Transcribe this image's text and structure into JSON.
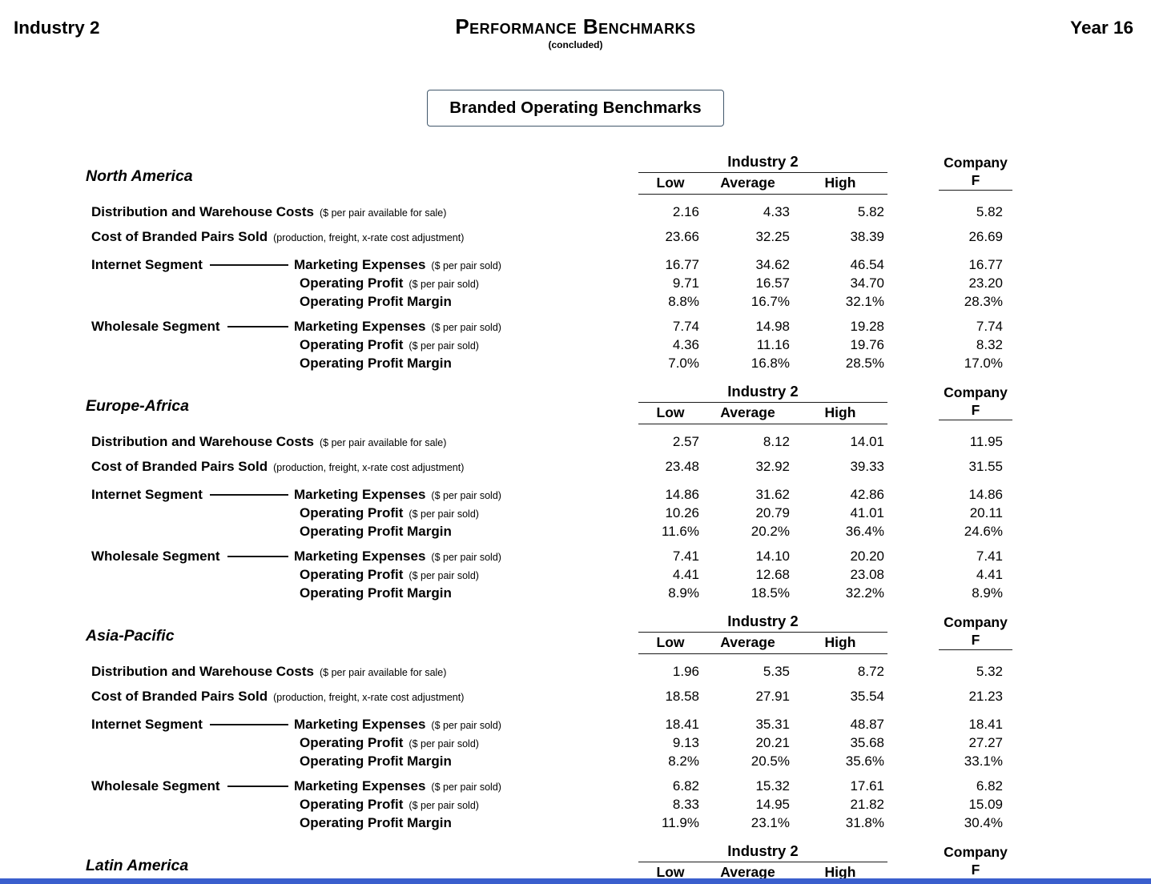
{
  "page": {
    "header_left": "Industry 2",
    "title": "Performance Benchmarks",
    "title_note": "(concluded)",
    "header_right": "Year 16",
    "box_title": "Branded Operating Benchmarks",
    "footer_strip_color": "#3a5fcd"
  },
  "table": {
    "group_header": "Industry 2",
    "columns": [
      "Low",
      "Average",
      "High"
    ],
    "company_header": [
      "Company",
      "F"
    ],
    "sections": [
      {
        "region": "North America",
        "rows": [
          {
            "type": "plain",
            "label": "Distribution and Warehouse Costs",
            "note": "($ per pair available for sale)",
            "values": [
              "2.16",
              "4.33",
              "5.82",
              "5.82"
            ]
          },
          {
            "type": "plain",
            "label": "Cost of Branded Pairs Sold",
            "note": "(production, freight, x-rate cost adjustment)",
            "values": [
              "23.66",
              "32.25",
              "38.39",
              "26.69"
            ]
          },
          {
            "type": "segment",
            "segment": "Internet Segment",
            "label": "Marketing Expenses",
            "note": "($ per pair sold)",
            "values": [
              "16.77",
              "34.62",
              "46.54",
              "16.77"
            ]
          },
          {
            "type": "sub",
            "label": "Operating Profit",
            "note": "($ per pair sold)",
            "values": [
              "9.71",
              "16.57",
              "34.70",
              "23.20"
            ]
          },
          {
            "type": "sub",
            "label": "Operating Profit Margin",
            "note": "",
            "values": [
              "8.8%",
              "16.7%",
              "32.1%",
              "28.3%"
            ]
          },
          {
            "type": "segment",
            "segment": "Wholesale Segment",
            "label": "Marketing Expenses",
            "note": "($ per pair sold)",
            "values": [
              "7.74",
              "14.98",
              "19.28",
              "7.74"
            ]
          },
          {
            "type": "sub",
            "label": "Operating Profit",
            "note": "($ per pair sold)",
            "values": [
              "4.36",
              "11.16",
              "19.76",
              "8.32"
            ]
          },
          {
            "type": "sub",
            "label": "Operating Profit Margin",
            "note": "",
            "values": [
              "7.0%",
              "16.8%",
              "28.5%",
              "17.0%"
            ]
          }
        ]
      },
      {
        "region": "Europe-Africa",
        "rows": [
          {
            "type": "plain",
            "label": "Distribution and Warehouse Costs",
            "note": "($ per pair available for sale)",
            "values": [
              "2.57",
              "8.12",
              "14.01",
              "11.95"
            ]
          },
          {
            "type": "plain",
            "label": "Cost of Branded Pairs Sold",
            "note": "(production, freight, x-rate cost adjustment)",
            "values": [
              "23.48",
              "32.92",
              "39.33",
              "31.55"
            ]
          },
          {
            "type": "segment",
            "segment": "Internet Segment",
            "label": "Marketing Expenses",
            "note": "($ per pair sold)",
            "values": [
              "14.86",
              "31.62",
              "42.86",
              "14.86"
            ]
          },
          {
            "type": "sub",
            "label": "Operating Profit",
            "note": "($ per pair sold)",
            "values": [
              "10.26",
              "20.79",
              "41.01",
              "20.11"
            ]
          },
          {
            "type": "sub",
            "label": "Operating Profit Margin",
            "note": "",
            "values": [
              "11.6%",
              "20.2%",
              "36.4%",
              "24.6%"
            ]
          },
          {
            "type": "segment",
            "segment": "Wholesale Segment",
            "label": "Marketing Expenses",
            "note": "($ per pair sold)",
            "values": [
              "7.41",
              "14.10",
              "20.20",
              "7.41"
            ]
          },
          {
            "type": "sub",
            "label": "Operating Profit",
            "note": "($ per pair sold)",
            "values": [
              "4.41",
              "12.68",
              "23.08",
              "4.41"
            ]
          },
          {
            "type": "sub",
            "label": "Operating Profit Margin",
            "note": "",
            "values": [
              "8.9%",
              "18.5%",
              "32.2%",
              "8.9%"
            ]
          }
        ]
      },
      {
        "region": "Asia-Pacific",
        "rows": [
          {
            "type": "plain",
            "label": "Distribution and Warehouse Costs",
            "note": "($ per pair available for sale)",
            "values": [
              "1.96",
              "5.35",
              "8.72",
              "5.32"
            ]
          },
          {
            "type": "plain",
            "label": "Cost of Branded Pairs Sold",
            "note": "(production, freight, x-rate cost adjustment)",
            "values": [
              "18.58",
              "27.91",
              "35.54",
              "21.23"
            ]
          },
          {
            "type": "segment",
            "segment": "Internet Segment",
            "label": "Marketing Expenses",
            "note": "($ per pair sold)",
            "values": [
              "18.41",
              "35.31",
              "48.87",
              "18.41"
            ]
          },
          {
            "type": "sub",
            "label": "Operating Profit",
            "note": "($ per pair sold)",
            "values": [
              "9.13",
              "20.21",
              "35.68",
              "27.27"
            ]
          },
          {
            "type": "sub",
            "label": "Operating Profit Margin",
            "note": "",
            "values": [
              "8.2%",
              "20.5%",
              "35.6%",
              "33.1%"
            ]
          },
          {
            "type": "segment",
            "segment": "Wholesale Segment",
            "label": "Marketing Expenses",
            "note": "($ per pair sold)",
            "values": [
              "6.82",
              "15.32",
              "17.61",
              "6.82"
            ]
          },
          {
            "type": "sub",
            "label": "Operating Profit",
            "note": "($ per pair sold)",
            "values": [
              "8.33",
              "14.95",
              "21.82",
              "15.09"
            ]
          },
          {
            "type": "sub",
            "label": "Operating Profit Margin",
            "note": "",
            "values": [
              "11.9%",
              "23.1%",
              "31.8%",
              "30.4%"
            ]
          }
        ]
      },
      {
        "region": "Latin America",
        "rows": []
      }
    ]
  }
}
